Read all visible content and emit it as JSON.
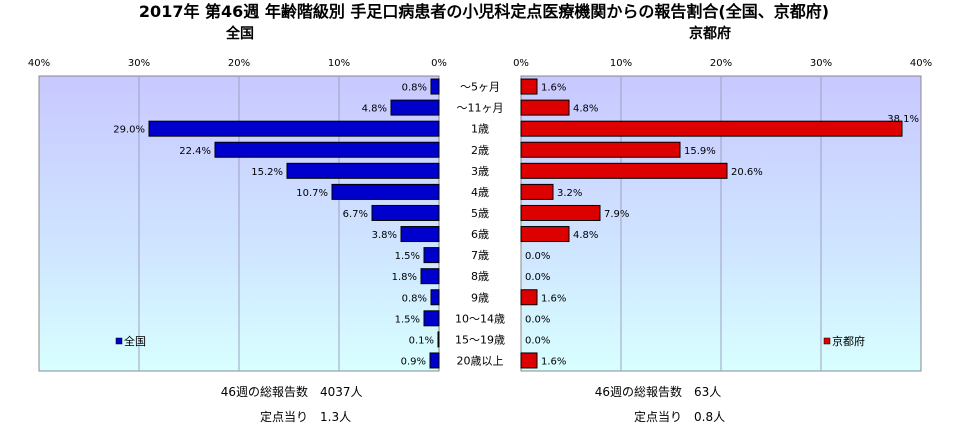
{
  "title": "2017年 第46週 年齢階級別 手足口病患者の小児科定点医療機関からの報告割合(全国、京都府)",
  "left_panel_title": "全国",
  "right_panel_title": "京都府",
  "footer": {
    "left_total_label": "46週の総報告数",
    "left_total_value": "4037人",
    "left_per_label": "定点当り",
    "left_per_value": "1.3人",
    "right_total_label": "46週の総報告数",
    "right_total_value": "63人",
    "right_per_label": "定点当り",
    "right_per_value": "0.8人"
  },
  "colors": {
    "national": "#0000cc",
    "kyoto": "#dd0000"
  },
  "chart_data": {
    "type": "bar",
    "orientation": "horizontal",
    "categories": [
      "～5ヶ月",
      "～11ヶ月",
      "1歳",
      "2歳",
      "3歳",
      "4歳",
      "5歳",
      "6歳",
      "7歳",
      "8歳",
      "9歳",
      "10～14歳",
      "15～19歳",
      "20歳以上"
    ],
    "series": [
      {
        "name": "全国",
        "values": [
          0.8,
          4.8,
          29.0,
          22.4,
          15.2,
          10.7,
          6.7,
          3.8,
          1.5,
          1.8,
          0.8,
          1.5,
          0.1,
          0.9
        ],
        "labels": [
          "0.8%",
          "4.8%",
          "29.0%",
          "22.4%",
          "15.2%",
          "10.7%",
          "6.7%",
          "3.8%",
          "1.5%",
          "1.8%",
          "0.8%",
          "1.5%",
          "0.1%",
          "0.9%"
        ]
      },
      {
        "name": "京都府",
        "values": [
          1.6,
          4.8,
          38.1,
          15.9,
          20.6,
          3.2,
          7.9,
          4.8,
          0.0,
          0.0,
          1.6,
          0.0,
          0.0,
          1.6
        ],
        "labels": [
          "1.6%",
          "4.8%",
          "38.1%",
          "15.9%",
          "20.6%",
          "3.2%",
          "7.9%",
          "4.8%",
          "0.0%",
          "0.0%",
          "1.6%",
          "0.0%",
          "0.0%",
          "1.6%"
        ]
      }
    ],
    "left_ticks": [
      "40%",
      "30%",
      "20%",
      "10%",
      "0%"
    ],
    "right_ticks": [
      "0%",
      "10%",
      "20%",
      "30%",
      "40%"
    ],
    "xlim": [
      0,
      40
    ],
    "unit": "%"
  }
}
